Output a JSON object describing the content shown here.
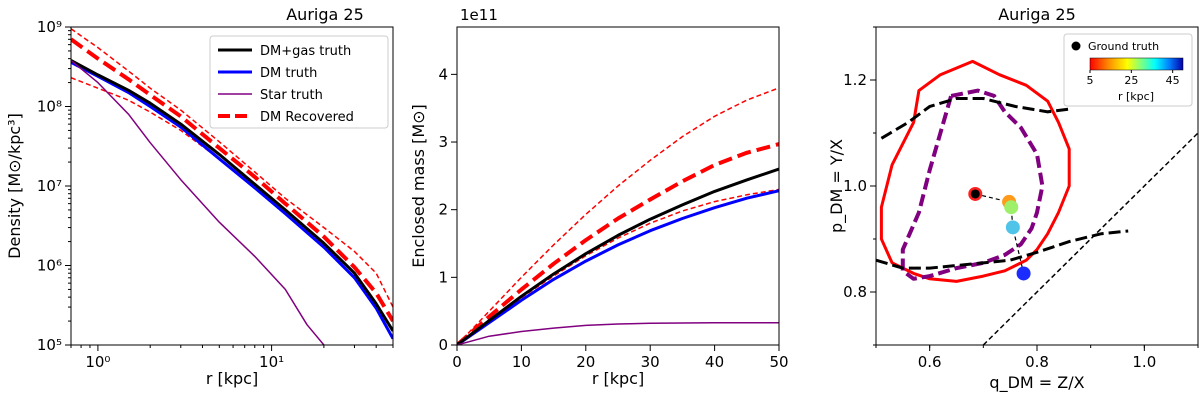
{
  "chart_data": [
    {
      "type": "line",
      "id": "density",
      "title": "Auriga 25",
      "xlabel": "r [kpc]",
      "ylabel": "Density [M⊙/kpc³]",
      "xscale": "log",
      "yscale": "log",
      "xlim": [
        0.7,
        50
      ],
      "ylim": [
        100000,
        1000000000
      ],
      "xticks": [
        {
          "v": 1,
          "label": "10⁰"
        },
        {
          "v": 10,
          "label": "10¹"
        }
      ],
      "yticks": [
        {
          "v": 100000,
          "label": "10⁵"
        },
        {
          "v": 1000000,
          "label": "10⁶"
        },
        {
          "v": 10000000,
          "label": "10⁷"
        },
        {
          "v": 100000000,
          "label": "10⁸"
        },
        {
          "v": 1000000000,
          "label": "10⁹"
        }
      ],
      "legend": {
        "position": "upper-right",
        "entries": [
          "DM+gas truth",
          "DM truth",
          "Star truth",
          "DM Recovered"
        ]
      },
      "series": [
        {
          "name": "DM+gas truth",
          "color": "#000000",
          "width": 3,
          "dash": "",
          "x": [
            0.7,
            1,
            1.5,
            2,
            3,
            5,
            8,
            12,
            20,
            30,
            40,
            50
          ],
          "y": [
            380000000,
            250000000,
            160000000,
            110000000,
            60000000,
            25000000,
            10500000,
            5000000,
            1900000,
            800000,
            330000,
            150000
          ]
        },
        {
          "name": "DM truth",
          "color": "#0000ff",
          "width": 3,
          "dash": "",
          "x": [
            0.7,
            1,
            1.5,
            2,
            3,
            5,
            8,
            12,
            20,
            30,
            40,
            50
          ],
          "y": [
            360000000,
            240000000,
            150000000,
            100000000,
            55000000,
            22000000,
            9500000,
            4500000,
            1700000,
            700000,
            290000,
            120000
          ]
        },
        {
          "name": "Star truth",
          "color": "#800080",
          "width": 1.5,
          "dash": "",
          "x": [
            0.7,
            1,
            1.5,
            2,
            3,
            5,
            8,
            12,
            16,
            20
          ],
          "y": [
            380000000,
            200000000,
            80000000,
            35000000,
            12000000,
            3500000,
            1300000,
            500000,
            180000,
            100000
          ]
        },
        {
          "name": "DM Recovered",
          "color": "#ff0000",
          "width": 4,
          "dash": "14,6",
          "x": [
            0.7,
            1,
            1.5,
            2,
            3,
            5,
            8,
            12,
            20,
            30,
            40,
            50
          ],
          "y": [
            700000000,
            400000000,
            220000000,
            140000000,
            75000000,
            30000000,
            13000000,
            6000000,
            2300000,
            950000,
            450000,
            200000
          ]
        },
        {
          "name": "DM Recovered upper",
          "color": "#ff0000",
          "width": 1.5,
          "dash": "5,3",
          "x": [
            0.7,
            1,
            1.5,
            2,
            3,
            5,
            8,
            12,
            20,
            30,
            40,
            50
          ],
          "y": [
            950000000,
            550000000,
            280000000,
            170000000,
            90000000,
            36000000,
            15000000,
            7000000,
            3000000,
            1500000,
            800000,
            300000
          ]
        },
        {
          "name": "DM Recovered lower",
          "color": "#ff0000",
          "width": 1.5,
          "dash": "5,3",
          "x": [
            0.7,
            1,
            1.5,
            2,
            3,
            5,
            8,
            12,
            20,
            30,
            40,
            50
          ],
          "y": [
            230000000,
            170000000,
            120000000,
            85000000,
            50000000,
            22000000,
            10000000,
            5000000,
            1800000,
            700000,
            300000,
            120000
          ]
        }
      ]
    },
    {
      "type": "line",
      "id": "enclosed-mass",
      "title": "",
      "offset_text": "1e11",
      "xlabel": "r [kpc]",
      "ylabel": "Enclosed mass [M⊙]",
      "xlim": [
        0,
        50
      ],
      "ylim": [
        0,
        4.7
      ],
      "xticks": [
        0,
        10,
        20,
        30,
        40,
        50
      ],
      "yticks": [
        0,
        1,
        2,
        3,
        4
      ],
      "series": [
        {
          "name": "DM+gas truth",
          "color": "#000000",
          "width": 3,
          "dash": "",
          "x": [
            0,
            5,
            10,
            15,
            20,
            25,
            30,
            35,
            40,
            45,
            50
          ],
          "y": [
            0,
            0.36,
            0.72,
            1.05,
            1.35,
            1.62,
            1.86,
            2.07,
            2.27,
            2.44,
            2.6
          ]
        },
        {
          "name": "DM truth",
          "color": "#0000ff",
          "width": 3,
          "dash": "",
          "x": [
            0,
            5,
            10,
            15,
            20,
            25,
            30,
            35,
            40,
            45,
            50
          ],
          "y": [
            0,
            0.33,
            0.66,
            0.97,
            1.24,
            1.48,
            1.69,
            1.87,
            2.03,
            2.17,
            2.28
          ]
        },
        {
          "name": "Star truth",
          "color": "#800080",
          "width": 1.5,
          "dash": "",
          "x": [
            0,
            5,
            10,
            15,
            20,
            25,
            30,
            35,
            40,
            45,
            50
          ],
          "y": [
            0,
            0.13,
            0.2,
            0.25,
            0.29,
            0.31,
            0.32,
            0.325,
            0.33,
            0.33,
            0.33
          ]
        },
        {
          "name": "DM Recovered",
          "color": "#ff0000",
          "width": 4,
          "dash": "14,6",
          "x": [
            0,
            5,
            10,
            15,
            20,
            25,
            30,
            35,
            40,
            45,
            50
          ],
          "y": [
            0,
            0.42,
            0.82,
            1.2,
            1.55,
            1.87,
            2.15,
            2.42,
            2.66,
            2.84,
            2.97
          ]
        },
        {
          "name": "DM Recovered upper",
          "color": "#ff0000",
          "width": 1.5,
          "dash": "5,3",
          "x": [
            0,
            5,
            10,
            15,
            20,
            25,
            30,
            35,
            40,
            45,
            50
          ],
          "y": [
            0,
            0.5,
            1.0,
            1.48,
            1.93,
            2.35,
            2.73,
            3.08,
            3.38,
            3.62,
            3.8
          ]
        },
        {
          "name": "DM Recovered lower",
          "color": "#ff0000",
          "width": 1.5,
          "dash": "5,3",
          "x": [
            0,
            5,
            10,
            15,
            20,
            25,
            30,
            35,
            40,
            45,
            50
          ],
          "y": [
            0,
            0.35,
            0.7,
            1.02,
            1.32,
            1.58,
            1.8,
            1.98,
            2.12,
            2.22,
            2.3
          ]
        }
      ]
    },
    {
      "type": "scatter",
      "id": "shape",
      "title": "Auriga 25",
      "xlabel": "q_DM = Z/X",
      "ylabel": "p_DM = Y/X",
      "xlim": [
        0.5,
        1.1
      ],
      "ylim": [
        0.7,
        1.3
      ],
      "xticks": [
        0.6,
        0.8,
        1.0
      ],
      "yticks": [
        0.8,
        1.0,
        1.2
      ],
      "legend": {
        "position": "upper-right",
        "entries": [
          "Ground truth"
        ]
      },
      "colorbar": {
        "label": "r [kpc]",
        "ticks": [
          5,
          25,
          45
        ],
        "range": [
          5,
          50
        ]
      },
      "diagonal": {
        "x": [
          0.7,
          1.1
        ],
        "y": [
          0.7,
          1.1
        ],
        "color": "#000000",
        "dash": "5,3"
      },
      "contours": [
        {
          "name": "outer",
          "color": "#ff0000",
          "width": 3,
          "dash": "",
          "x": [
            0.58,
            0.62,
            0.68,
            0.73,
            0.78,
            0.82,
            0.84,
            0.86,
            0.86,
            0.84,
            0.82,
            0.8,
            0.78,
            0.74,
            0.7,
            0.65,
            0.6,
            0.57,
            0.53,
            0.51,
            0.51,
            0.53,
            0.57,
            0.58
          ],
          "y": [
            1.18,
            1.21,
            1.235,
            1.21,
            1.19,
            1.16,
            1.12,
            1.07,
            1.0,
            0.95,
            0.91,
            0.88,
            0.86,
            0.84,
            0.83,
            0.82,
            0.825,
            0.835,
            0.855,
            0.9,
            0.96,
            1.04,
            1.12,
            1.18
          ]
        },
        {
          "name": "inner",
          "color": "#800080",
          "width": 4,
          "dash": "12,5",
          "x": [
            0.64,
            0.69,
            0.72,
            0.74,
            0.77,
            0.8,
            0.81,
            0.8,
            0.79,
            0.77,
            0.74,
            0.7,
            0.65,
            0.6,
            0.57,
            0.55,
            0.55,
            0.58,
            0.6,
            0.62,
            0.64
          ],
          "y": [
            1.17,
            1.18,
            1.17,
            1.14,
            1.11,
            1.06,
            1.0,
            0.95,
            0.92,
            0.89,
            0.87,
            0.855,
            0.845,
            0.83,
            0.825,
            0.84,
            0.88,
            0.95,
            1.03,
            1.1,
            1.17
          ]
        }
      ],
      "bounds": [
        {
          "name": "upper bound",
          "color": "#000000",
          "width": 3,
          "dash": "12,5",
          "x": [
            0.51,
            0.56,
            0.6,
            0.65,
            0.7,
            0.76,
            0.82,
            0.86
          ],
          "y": [
            1.09,
            1.12,
            1.15,
            1.165,
            1.165,
            1.15,
            1.14,
            1.145
          ]
        },
        {
          "name": "lower bound",
          "color": "#000000",
          "width": 3,
          "dash": "12,5",
          "x": [
            0.5,
            0.55,
            0.6,
            0.65,
            0.7,
            0.75,
            0.8,
            0.86,
            0.92,
            0.97
          ],
          "y": [
            0.86,
            0.845,
            0.845,
            0.85,
            0.855,
            0.86,
            0.875,
            0.895,
            0.91,
            0.915
          ]
        }
      ],
      "points": [
        {
          "name": "Ground truth",
          "q": 0.685,
          "p": 0.985,
          "color": "#000000"
        },
        {
          "name": "r=5",
          "q": 0.685,
          "p": 0.985,
          "color": "#ff2020"
        },
        {
          "name": "r=15",
          "q": 0.748,
          "p": 0.97,
          "color": "#ff9a1a"
        },
        {
          "name": "r=25",
          "q": 0.752,
          "p": 0.96,
          "color": "#9ef06a"
        },
        {
          "name": "r=35",
          "q": 0.755,
          "p": 0.922,
          "color": "#4fc3e8"
        },
        {
          "name": "r=45",
          "q": 0.775,
          "p": 0.835,
          "color": "#1a2cff"
        }
      ]
    }
  ]
}
